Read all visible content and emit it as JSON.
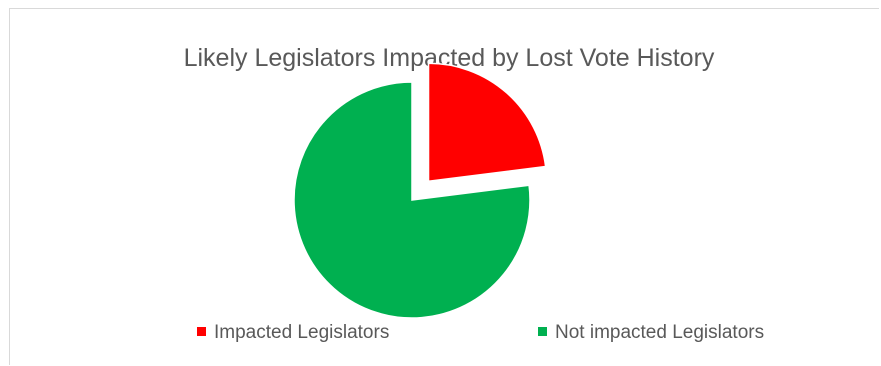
{
  "chart_data": {
    "type": "pie",
    "title": "Likely Legislators Impacted by Lost Vote History",
    "categories": [
      "Impacted Legislators",
      "Not impacted Legislators"
    ],
    "values": [
      23,
      77
    ],
    "colors": [
      "#ff0000",
      "#00b050"
    ],
    "exploded": [
      true,
      false
    ],
    "legend": "bottom"
  }
}
